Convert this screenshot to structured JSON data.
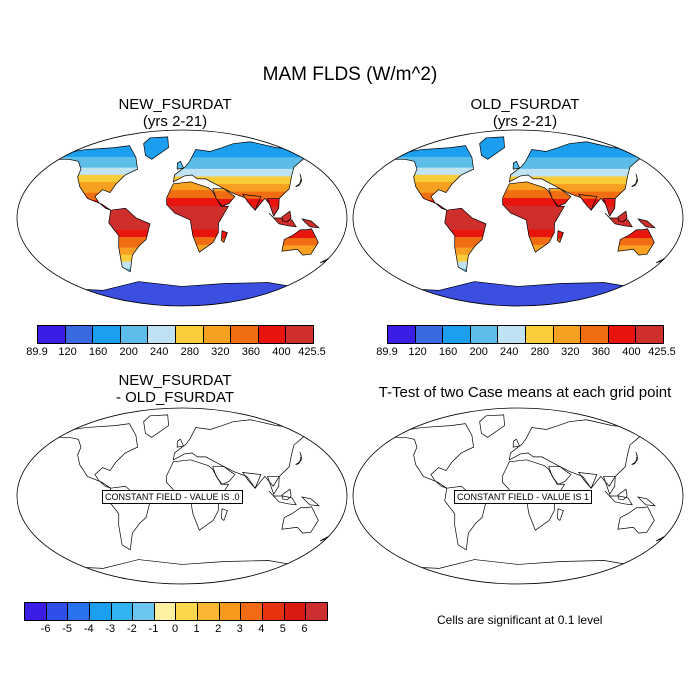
{
  "figure": {
    "title": "MAM FLDS (W/m^2)"
  },
  "panels": {
    "top_left": {
      "title": "NEW_FSURDAT\n(yrs 2-21)"
    },
    "top_right": {
      "title": "OLD_FSURDAT\n(yrs 2-21)"
    },
    "bottom_left": {
      "title": "NEW_FSURDAT\n- OLD_FSURDAT",
      "constant_label": "CONSTANT FIELD - VALUE IS .0"
    },
    "bottom_right": {
      "title": "T-Test of two Case means at each grid point",
      "constant_label": "CONSTANT FIELD - VALUE IS 1",
      "note": "Cells are significant at 0.1 level"
    }
  },
  "colorbar_main": {
    "labels": [
      "89.9",
      "120",
      "160",
      "200",
      "240",
      "280",
      "320",
      "360",
      "400",
      "425.5"
    ],
    "colors": [
      "#3a1ee6",
      "#3b6ae0",
      "#1d9ff0",
      "#5cbde9",
      "#bfe3f3",
      "#f9cc3a",
      "#f7a022",
      "#f16d12",
      "#e8150f",
      "#cf2f2c"
    ]
  },
  "colorbar_diff": {
    "labels": [
      "-6",
      "-5",
      "-4",
      "-3",
      "-2",
      "-1",
      "0",
      "1",
      "2",
      "3",
      "4",
      "5",
      "6"
    ],
    "colors": [
      "#3a1ee6",
      "#2f4fe8",
      "#2a73ef",
      "#1d9ff0",
      "#31b2f1",
      "#6cc5ef",
      "#fdf1a1",
      "#fbd74c",
      "#f9b632",
      "#f79a1d",
      "#f26b14",
      "#e8340e",
      "#d81a10",
      "#cc2f2f"
    ]
  },
  "map_colors": {
    "polar": "#3b4fe0",
    "cold": "#1d9ff0",
    "cool": "#5cbde9",
    "mild": "#bfe3f3",
    "warm": "#f9cc3a",
    "warmer": "#f7a022",
    "hot": "#f16d12",
    "hotter": "#e8150f",
    "hottest": "#cf2f2c"
  }
}
